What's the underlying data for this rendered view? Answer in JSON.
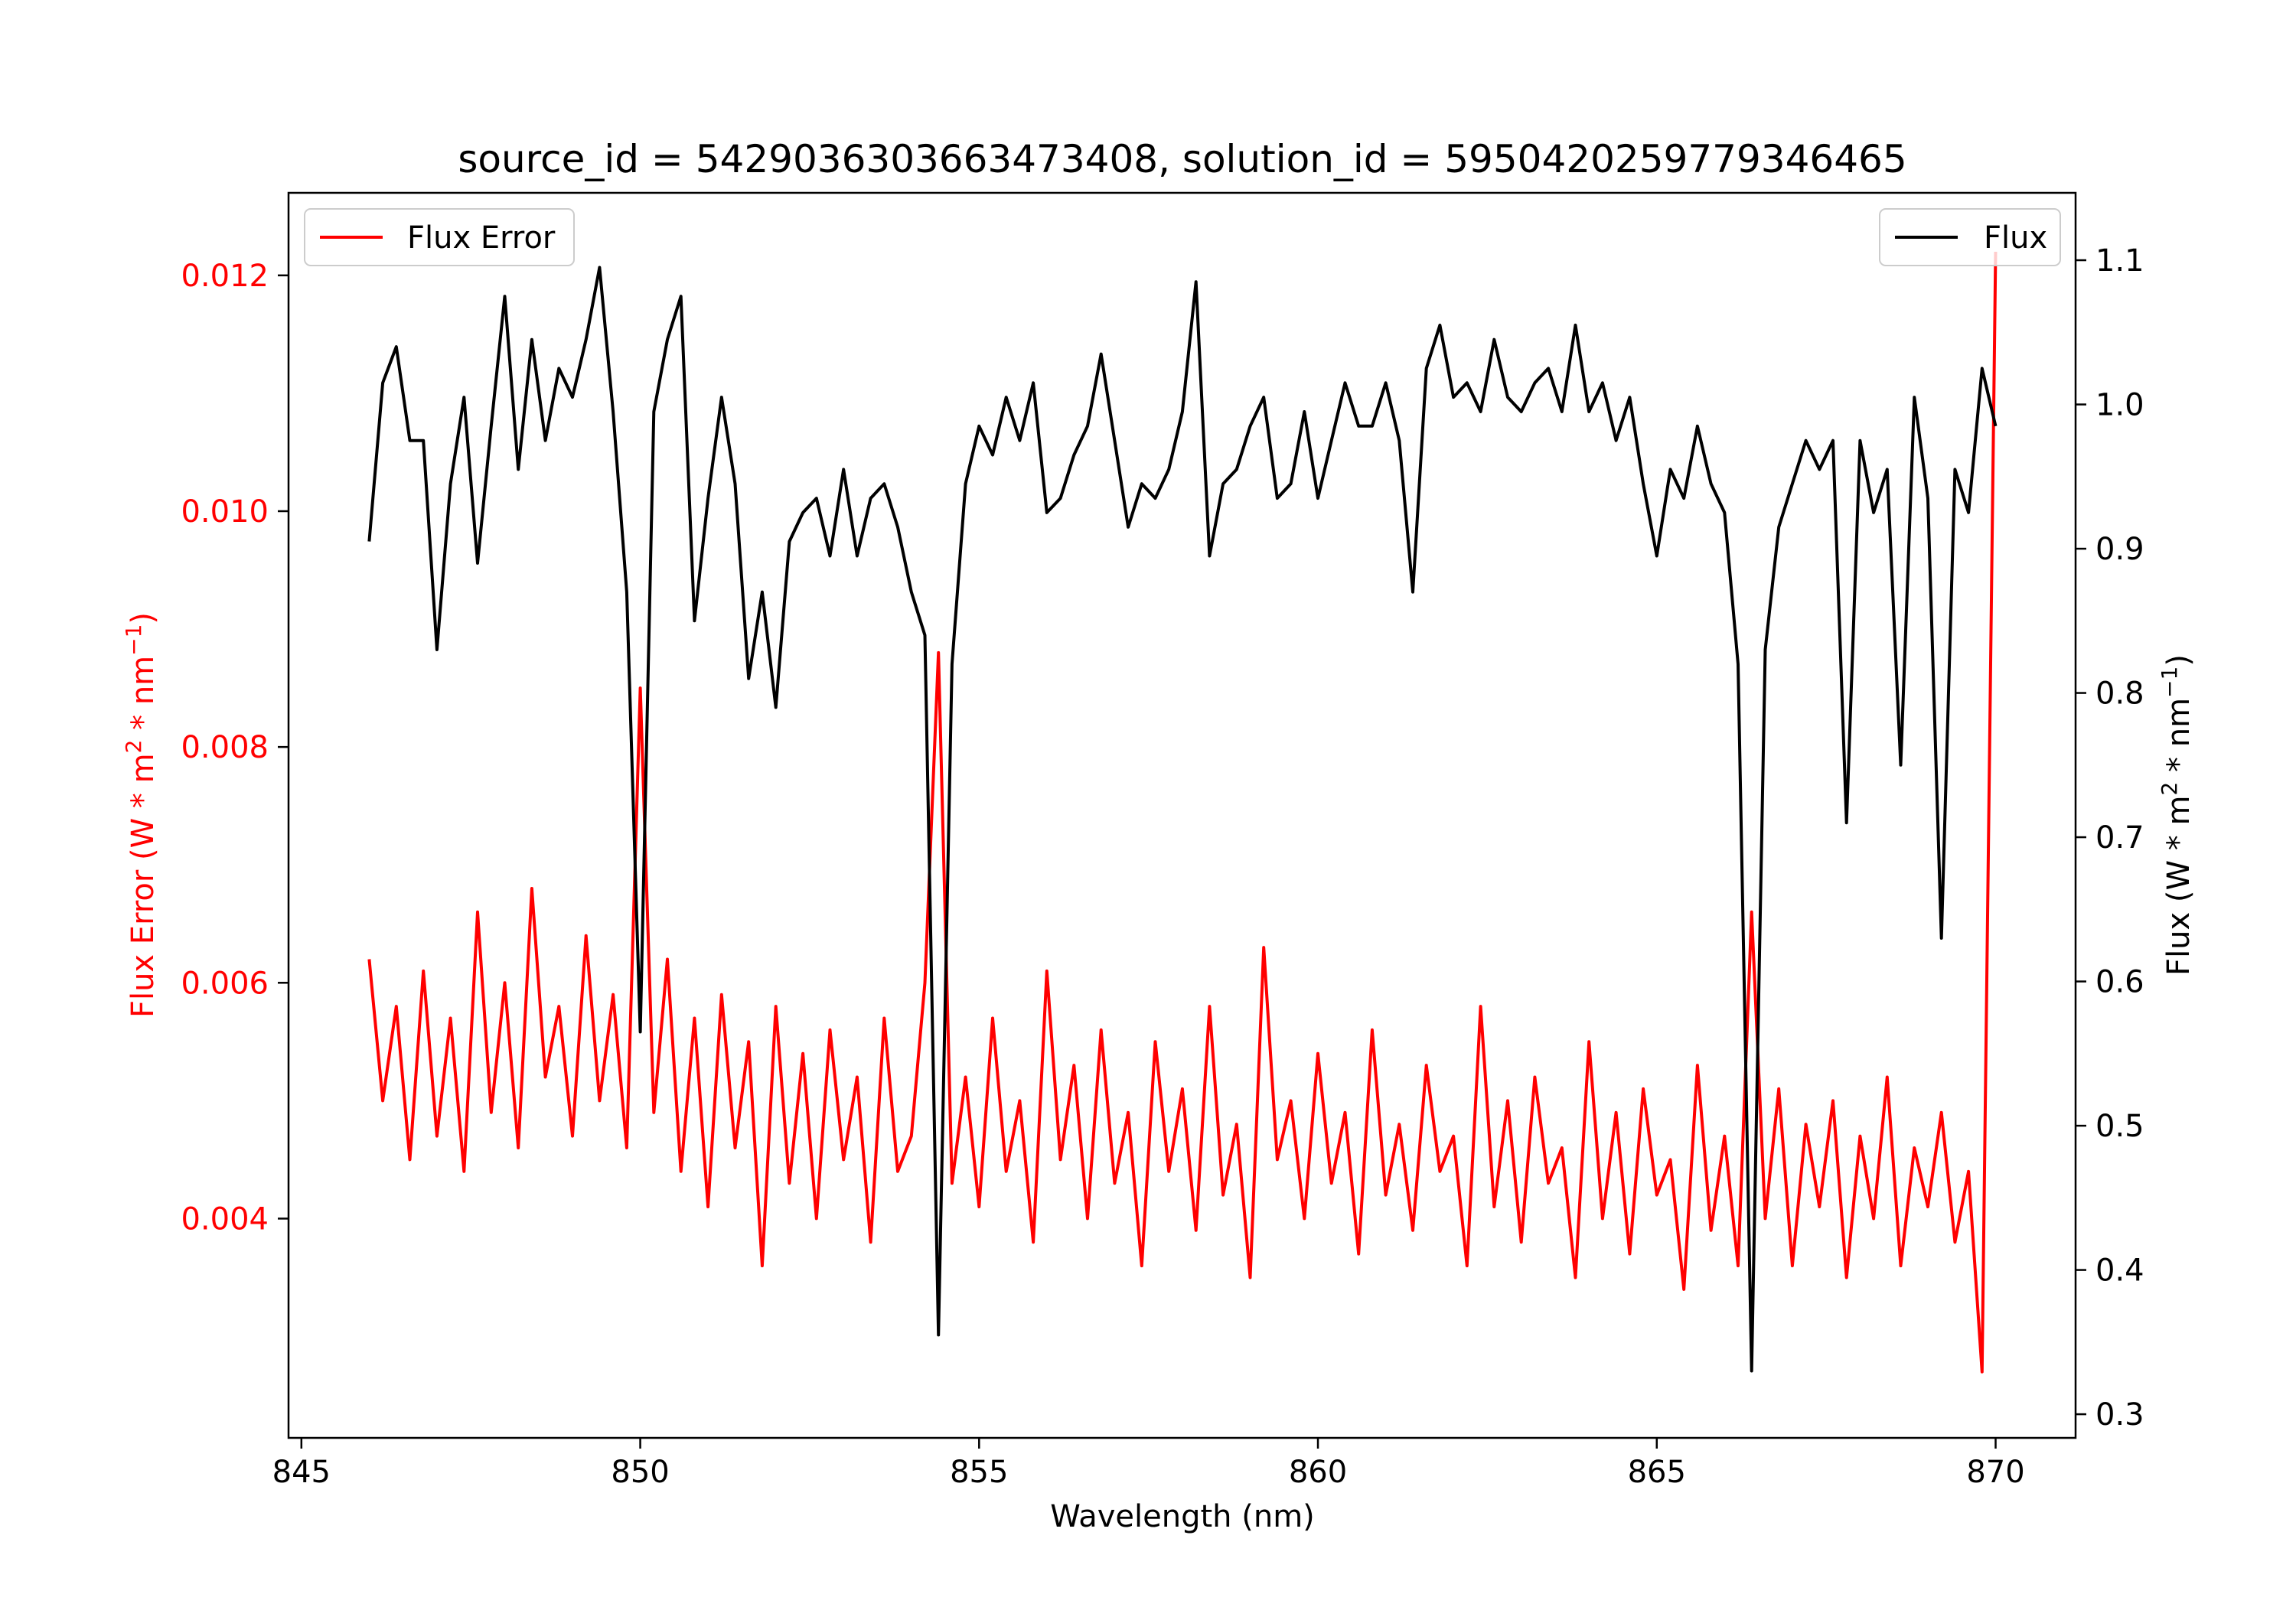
{
  "chart_data": {
    "type": "line",
    "title": "source_id = 5429036303663473408, solution_id = 5950420259779346465",
    "xlabel": "Wavelength (nm)",
    "ylabel_left": "Flux Error (W * m",
    "ylabel_left_sup1": "2",
    "ylabel_left_mid": " * nm",
    "ylabel_left_sup2": "−1",
    "ylabel_left_end": ")",
    "ylabel_right": "Flux (W * m",
    "ylabel_right_sup1": "2",
    "ylabel_right_mid": " * nm",
    "ylabel_right_sup2": "−1",
    "ylabel_right_end": ")",
    "xlim": [
      844.81,
      871.18
    ],
    "ylim_left": [
      0.00214,
      0.0127
    ],
    "ylim_right": [
      0.2836,
      1.1467
    ],
    "x_ticks": [
      845,
      850,
      855,
      860,
      865,
      870
    ],
    "x_tick_labels": [
      "845",
      "850",
      "855",
      "860",
      "865",
      "870"
    ],
    "y_left_ticks": [
      0.004,
      0.006,
      0.008,
      0.01,
      0.012
    ],
    "y_left_tick_labels": [
      "0.004",
      "0.006",
      "0.008",
      "0.010",
      "0.012"
    ],
    "y_right_ticks": [
      0.3,
      0.4,
      0.5,
      0.6,
      0.7,
      0.8,
      0.9,
      1.0,
      1.1
    ],
    "y_right_tick_labels": [
      "0.3",
      "0.4",
      "0.5",
      "0.6",
      "0.7",
      "0.8",
      "0.9",
      "1.0",
      "1.1"
    ],
    "grid": false,
    "x_start": 846.0,
    "x_step": 0.2,
    "series": [
      {
        "name": "Flux Error",
        "axis": "left",
        "color": "#ff0000",
        "legend": "top-left",
        "values": [
          0.0062,
          0.005,
          0.0058,
          0.0045,
          0.0061,
          0.0047,
          0.0057,
          0.0044,
          0.0066,
          0.0049,
          0.006,
          0.0046,
          0.0068,
          0.0052,
          0.0058,
          0.0047,
          0.0064,
          0.005,
          0.0059,
          0.0046,
          0.0085,
          0.0049,
          0.0062,
          0.0044,
          0.0057,
          0.0041,
          0.0059,
          0.0046,
          0.0055,
          0.0036,
          0.0058,
          0.0043,
          0.0054,
          0.004,
          0.0056,
          0.0045,
          0.0052,
          0.0038,
          0.0057,
          0.0044,
          0.0047,
          0.006,
          0.0088,
          0.0043,
          0.0052,
          0.0041,
          0.0057,
          0.0044,
          0.005,
          0.0038,
          0.0061,
          0.0045,
          0.0053,
          0.004,
          0.0056,
          0.0043,
          0.0049,
          0.0036,
          0.0055,
          0.0044,
          0.0051,
          0.0039,
          0.0058,
          0.0042,
          0.0048,
          0.0035,
          0.0063,
          0.0045,
          0.005,
          0.004,
          0.0054,
          0.0043,
          0.0049,
          0.0037,
          0.0056,
          0.0042,
          0.0048,
          0.0039,
          0.0053,
          0.0044,
          0.0047,
          0.0036,
          0.0058,
          0.0041,
          0.005,
          0.0038,
          0.0052,
          0.0043,
          0.0046,
          0.0035,
          0.0055,
          0.004,
          0.0049,
          0.0037,
          0.0051,
          0.0042,
          0.0045,
          0.0034,
          0.0053,
          0.0039,
          0.0047,
          0.0036,
          0.0066,
          0.004,
          0.0051,
          0.0036,
          0.0048,
          0.0041,
          0.005,
          0.0035,
          0.0047,
          0.004,
          0.0052,
          0.0036,
          0.0046,
          0.0041,
          0.0049,
          0.0038,
          0.0044,
          0.0027,
          0.0122
        ]
      },
      {
        "name": "Flux",
        "axis": "right",
        "color": "#000000",
        "legend": "top-right",
        "values": [
          0.905,
          1.015,
          1.04,
          0.975,
          0.975,
          0.83,
          0.945,
          1.005,
          0.89,
          0.985,
          1.075,
          0.955,
          1.045,
          0.975,
          1.025,
          1.005,
          1.045,
          1.095,
          0.995,
          0.87,
          0.565,
          0.995,
          1.045,
          1.075,
          0.85,
          0.935,
          1.005,
          0.945,
          0.81,
          0.87,
          0.79,
          0.905,
          0.925,
          0.935,
          0.895,
          0.955,
          0.895,
          0.935,
          0.945,
          0.915,
          0.87,
          0.84,
          0.355,
          0.82,
          0.945,
          0.985,
          0.965,
          1.005,
          0.975,
          1.015,
          0.925,
          0.935,
          0.965,
          0.985,
          1.035,
          0.975,
          0.915,
          0.945,
          0.935,
          0.955,
          0.995,
          1.085,
          0.895,
          0.945,
          0.955,
          0.985,
          1.005,
          0.935,
          0.945,
          0.995,
          0.935,
          0.975,
          1.015,
          0.985,
          0.985,
          1.015,
          0.975,
          0.87,
          1.025,
          1.055,
          1.005,
          1.015,
          0.995,
          1.045,
          1.005,
          0.995,
          1.015,
          1.025,
          0.995,
          1.055,
          0.995,
          1.015,
          0.975,
          1.005,
          0.945,
          0.895,
          0.955,
          0.935,
          0.985,
          0.945,
          0.925,
          0.82,
          0.33,
          0.83,
          0.915,
          0.945,
          0.975,
          0.955,
          0.975,
          0.71,
          0.975,
          0.925,
          0.955,
          0.75,
          1.005,
          0.935,
          0.63,
          0.955,
          0.925,
          1.025,
          0.985
        ]
      }
    ]
  }
}
